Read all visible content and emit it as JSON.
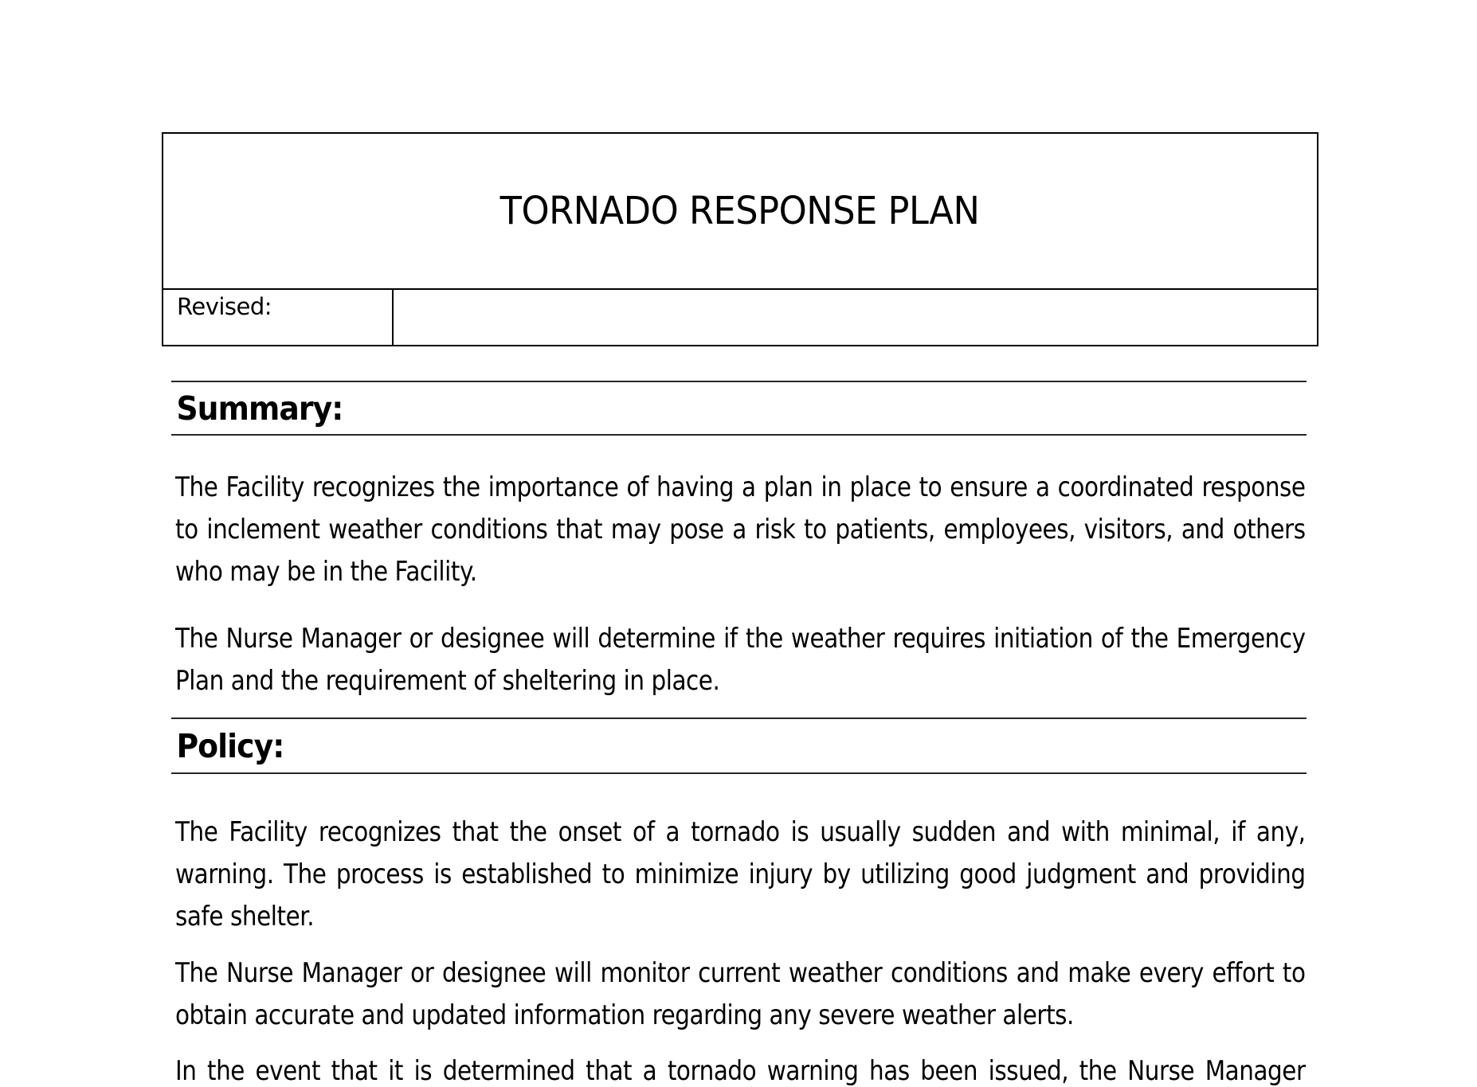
{
  "page": {
    "background": "#ffffff",
    "text_color": "#000000",
    "table_border_color": "#000000",
    "heading_rule_color": "#262626"
  },
  "header": {
    "title": "TORNADO RESPONSE PLAN",
    "revised_label": "Revised:",
    "revised_value": ""
  },
  "sections": [
    {
      "heading": "Summary:",
      "paragraphs": [
        "The Facility recognizes the importance of having a plan in place to ensure a coordinated response to inclement weather conditions that may pose a risk to patients, employees, visitors, and others who may be in the Facility.",
        "The Nurse Manager or designee will determine if the weather requires initiation of the Emergency Plan and the requirement of sheltering in place."
      ]
    },
    {
      "heading": "Policy:",
      "paragraphs": [
        "The Facility recognizes that the onset of a tornado is usually sudden and with minimal, if any, warning. The process is established to minimize injury by utilizing good judgment and providing safe shelter.",
        "The Nurse Manager or designee will monitor current weather conditions and make every effort to obtain accurate and updated information regarding any severe weather alerts.",
        "In the event that it is determined that a tornado warning has been issued, the Nurse Manager"
      ]
    }
  ]
}
